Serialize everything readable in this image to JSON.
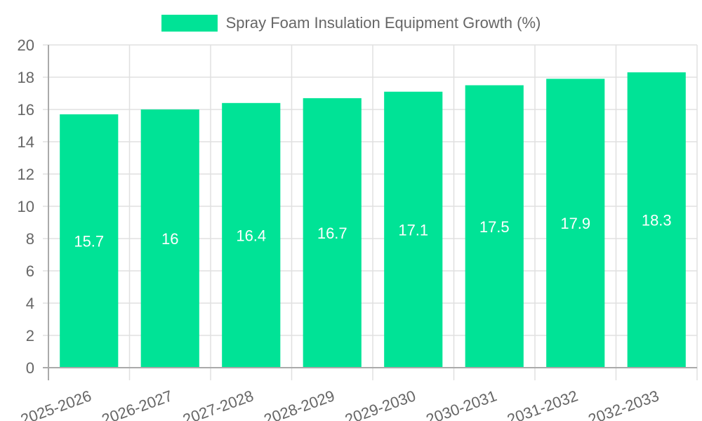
{
  "legend": {
    "label": "Spray Foam Insulation Equipment Growth (%)",
    "color": "#00e396"
  },
  "colors": {
    "bar": "#00e396",
    "grid": "#e0e0e0",
    "axis": "#aaaaaa",
    "text": "#666666",
    "bar_label": "#ffffff"
  },
  "chart_data": {
    "type": "bar",
    "title": "",
    "xlabel": "",
    "ylabel": "",
    "categories": [
      "2025-2026",
      "2026-2027",
      "2027-2028",
      "2028-2029",
      "2029-2030",
      "2030-2031",
      "2031-2032",
      "2032-2033"
    ],
    "series": [
      {
        "name": "Spray Foam Insulation Equipment Growth (%)",
        "values": [
          15.7,
          16,
          16.4,
          16.7,
          17.1,
          17.5,
          17.9,
          18.3
        ]
      }
    ],
    "ylim": [
      0,
      20
    ],
    "yticks": [
      0,
      2,
      4,
      6,
      8,
      10,
      12,
      14,
      16,
      18,
      20
    ],
    "grid": true,
    "legend_position": "top",
    "data_labels": true,
    "xtick_rotation": -20
  }
}
